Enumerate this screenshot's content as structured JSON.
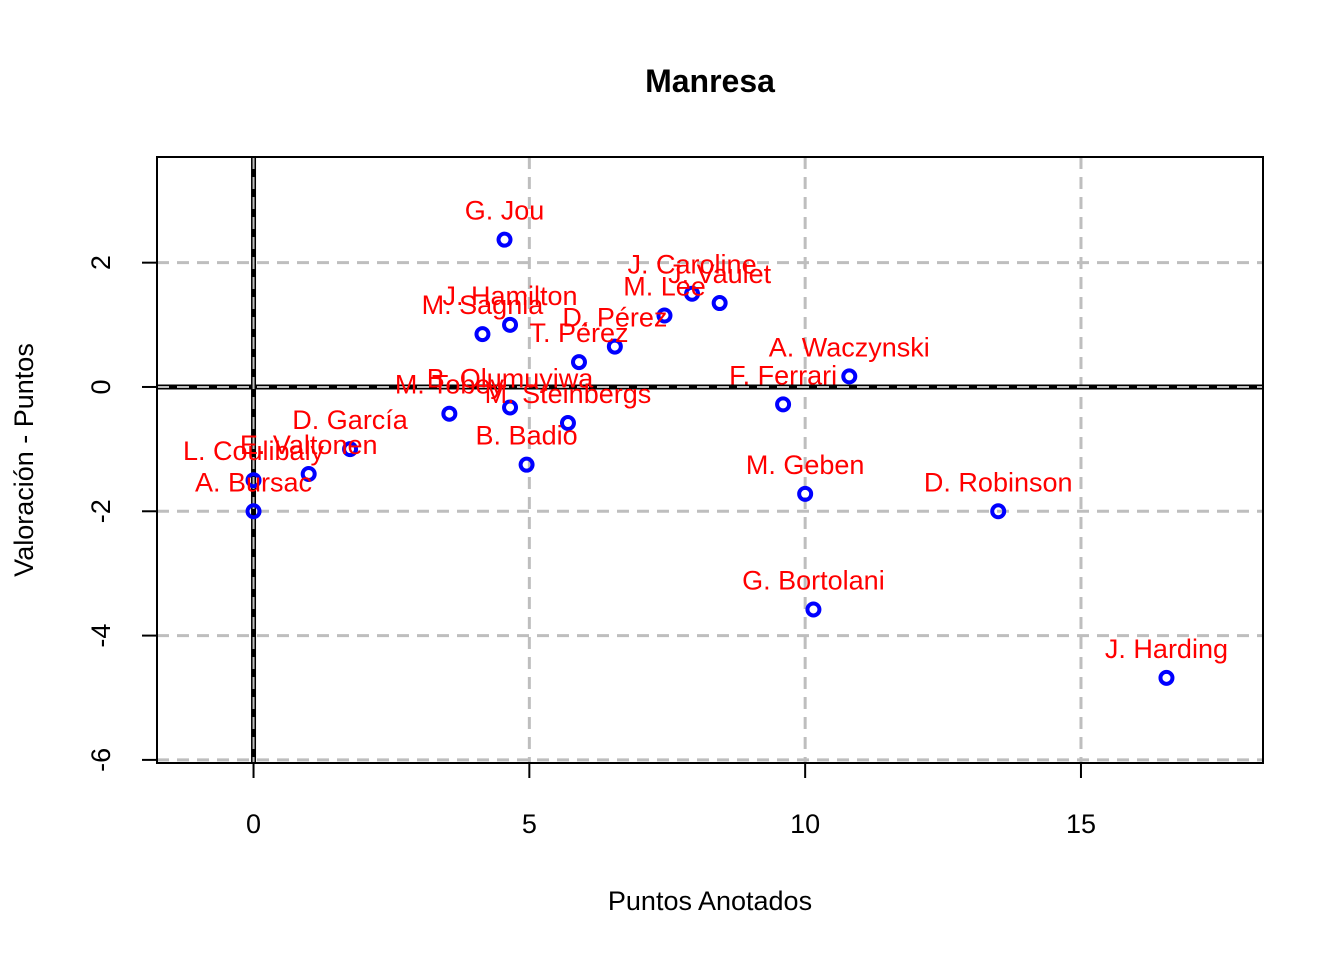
{
  "chart_data": {
    "type": "scatter",
    "title": "Manresa",
    "xlabel": "Puntos Anotados",
    "ylabel": "Valoración - Puntos",
    "xlim": [
      -1.75,
      18.3
    ],
    "ylim": [
      -6.05,
      3.7
    ],
    "xticks": [
      0,
      5,
      10,
      15
    ],
    "yticks": [
      -6,
      -4,
      -2,
      0,
      2
    ],
    "grid": true,
    "reference_lines": {
      "x": 0,
      "y": 0
    },
    "point_color": "#0000ff",
    "label_color": "#ff0000",
    "points": [
      {
        "name": "G. Jou",
        "x": 4.55,
        "y": 2.37
      },
      {
        "name": "J. Caroline",
        "x": 7.95,
        "y": 1.5
      },
      {
        "name": "J. Vaulet",
        "x": 8.45,
        "y": 1.35
      },
      {
        "name": "M. Lee",
        "x": 7.45,
        "y": 1.15
      },
      {
        "name": "J. Hamilton",
        "x": 4.65,
        "y": 1.0
      },
      {
        "name": "M. Sagnia",
        "x": 4.15,
        "y": 0.85
      },
      {
        "name": "D. Pérez",
        "x": 6.55,
        "y": 0.65
      },
      {
        "name": "T. Pérez",
        "x": 5.9,
        "y": 0.4
      },
      {
        "name": "A. Waczynski",
        "x": 10.8,
        "y": 0.17
      },
      {
        "name": "F. Ferrari",
        "x": 9.6,
        "y": -0.28
      },
      {
        "name": "B. Olumuyiwa",
        "x": 4.65,
        "y": -0.33
      },
      {
        "name": "M. Tobey",
        "x": 3.55,
        "y": -0.43
      },
      {
        "name": "M. Steinbergs",
        "x": 5.7,
        "y": -0.58
      },
      {
        "name": "D. García",
        "x": 1.75,
        "y": -1.0
      },
      {
        "name": "B. Badio",
        "x": 4.95,
        "y": -1.25
      },
      {
        "name": "E. Valtonen",
        "x": 1.0,
        "y": -1.4
      },
      {
        "name": "L. Coulibaly",
        "x": 0.0,
        "y": -1.5
      },
      {
        "name": "A. Bursac",
        "x": 0.0,
        "y": -2.0
      },
      {
        "name": "M. Geben",
        "x": 10.0,
        "y": -1.72
      },
      {
        "name": "D. Robinson",
        "x": 13.5,
        "y": -2.0
      },
      {
        "name": "G. Bortolani",
        "x": 10.15,
        "y": -3.58
      },
      {
        "name": "J. Harding",
        "x": 16.55,
        "y": -4.68
      }
    ]
  }
}
